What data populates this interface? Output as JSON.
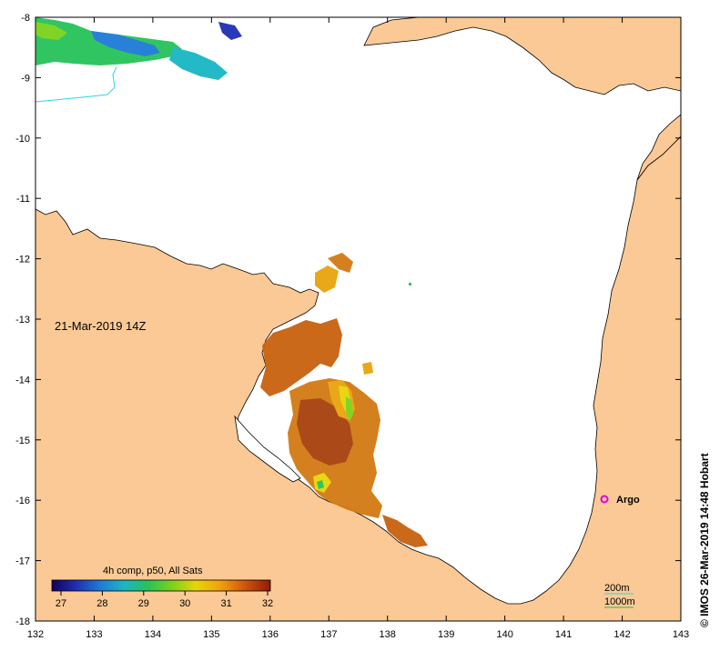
{
  "map": {
    "date_label": "21-Mar-2019 14Z",
    "credit": "© IMOS 26-Mar-2019 14:48 Hobart",
    "x_ticks": [
      "132",
      "133",
      "134",
      "135",
      "136",
      "137",
      "138",
      "139",
      "140",
      "141",
      "142",
      "143"
    ],
    "y_ticks": [
      "-8",
      "-9",
      "-10",
      "-11",
      "-12",
      "-13",
      "-14",
      "-15",
      "-16",
      "-17",
      "-18"
    ],
    "colors": {
      "land": "#fbc995",
      "sea": "#ffffff",
      "argo": "#e000e0",
      "contour_cyan": "#22d8e8",
      "contour_green": "#20c040"
    }
  },
  "colorbar": {
    "title": "4h comp, p50, All Sats",
    "ticks": [
      "27",
      "28",
      "29",
      "30",
      "31",
      "32"
    ],
    "range": [
      27,
      32
    ],
    "colormap": [
      "#13005e",
      "#1f2fb4",
      "#1e7ad6",
      "#19b6c4",
      "#27c25a",
      "#7ad21a",
      "#e8d407",
      "#f2a20b",
      "#d0580e",
      "#901a0a"
    ]
  },
  "argo": {
    "label": "Argo",
    "lon": 141.7,
    "lat": -16.0
  },
  "legend": {
    "contour_200": "200m",
    "contour_1000": "1000m"
  }
}
